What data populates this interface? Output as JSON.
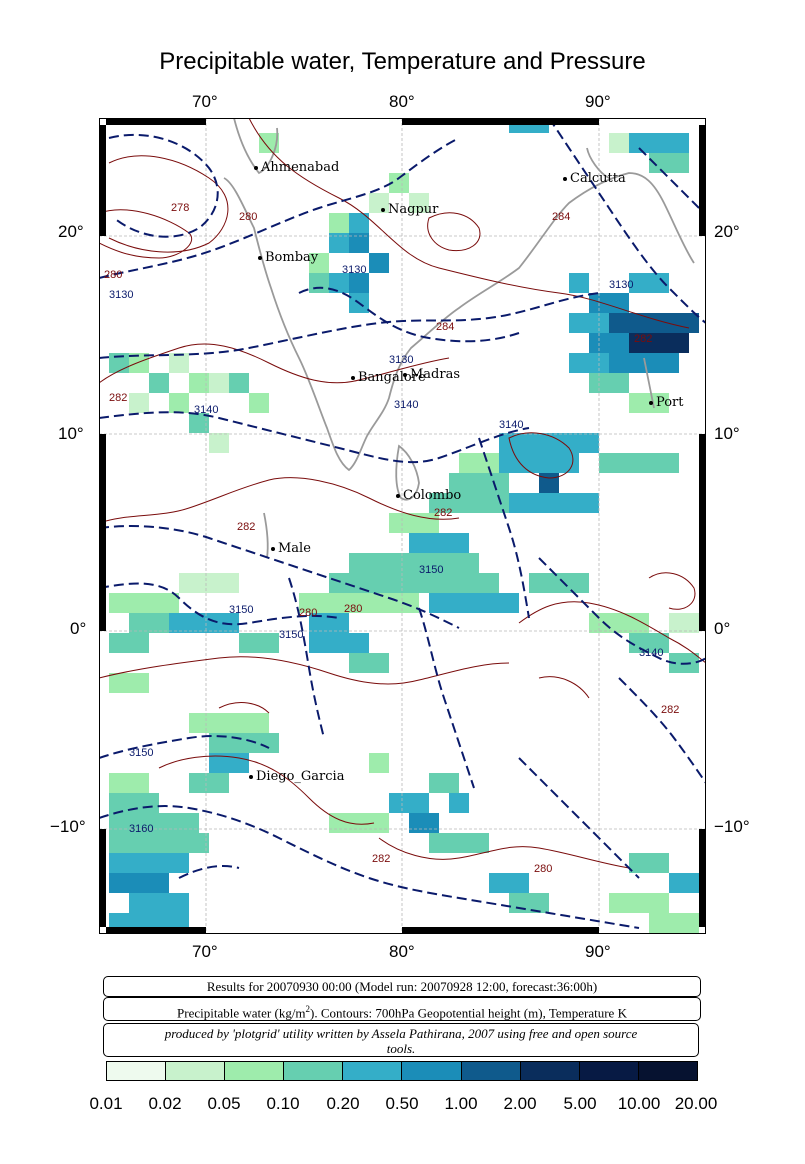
{
  "title": "Precipitable water, Temperature and Pressure",
  "map": {
    "lon_range": [
      65,
      95
    ],
    "lat_range": [
      -15,
      26
    ],
    "lon_ticks": [
      {
        "label": "70°",
        "value": 70
      },
      {
        "label": "80°",
        "value": 80
      },
      {
        "label": "90°",
        "value": 90
      }
    ],
    "lat_ticks": [
      {
        "label": "20°",
        "value": 20
      },
      {
        "label": "10°",
        "value": 10
      },
      {
        "label": "0°",
        "value": 0
      },
      {
        "label": "−10°",
        "value": -10
      }
    ],
    "grid": true,
    "cities": [
      {
        "name": "Ahmenabad",
        "lon": 72.6,
        "lat": 23.0
      },
      {
        "name": "Calcutta",
        "lon": 88.4,
        "lat": 22.6
      },
      {
        "name": "Nagpur",
        "lon": 79.1,
        "lat": 21.1
      },
      {
        "name": "Bombay",
        "lon": 72.8,
        "lat": 19.0
      },
      {
        "name": "Bangalore",
        "lon": 77.6,
        "lat": 12.9
      },
      {
        "name": "Madras",
        "lon": 80.3,
        "lat": 13.1
      },
      {
        "name": "Port",
        "lon": 92.7,
        "lat": 11.6
      },
      {
        "name": "Colombo",
        "lon": 79.9,
        "lat": 6.9
      },
      {
        "name": "Male",
        "lon": 73.5,
        "lat": 4.2
      },
      {
        "name": "Diego_Garcia",
        "lon": 72.4,
        "lat": -7.3
      }
    ],
    "contour_labels_height": [
      "3130",
      "3130",
      "3130",
      "3130",
      "3140",
      "3140",
      "3140",
      "3140",
      "3150",
      "3150",
      "3150",
      "3150",
      "3160"
    ],
    "contour_labels_temp": [
      "278",
      "280",
      "280",
      "280",
      "282",
      "282",
      "282",
      "282",
      "284",
      "284",
      "280",
      "282",
      "282",
      "280"
    ],
    "colors": {
      "height_contour": "#0a1a6b",
      "temp_contour": "#7a0c0c",
      "coast": "#9a9a9a",
      "grid": "#b8b8b8"
    }
  },
  "info": {
    "line1": "Results for 20070930 00:00 (Model run: 20070928 12:00, forecast:36:00h)",
    "line2_a": "Precipitable water (kg/m",
    "line2_sup": "2",
    "line2_b": ").  Contours: 700hPa Geopotential height (m), Temperature K",
    "line3": "produced by 'plotgrid' utility written by Assela Pathirana, 2007 using free and open source tools."
  },
  "colorbar": {
    "labels": [
      "0.01",
      "0.02",
      "0.05",
      "0.10",
      "0.20",
      "0.50",
      "1.00",
      "2.00",
      "5.00",
      "10.00",
      "20.00"
    ],
    "colors": [
      "#eefaee",
      "#c8f2cc",
      "#9eecac",
      "#66cfb0",
      "#34aec8",
      "#1b8db8",
      "#0f5a8c",
      "#0a2d5c",
      "#071a44",
      "#061230",
      "#03071a"
    ]
  }
}
